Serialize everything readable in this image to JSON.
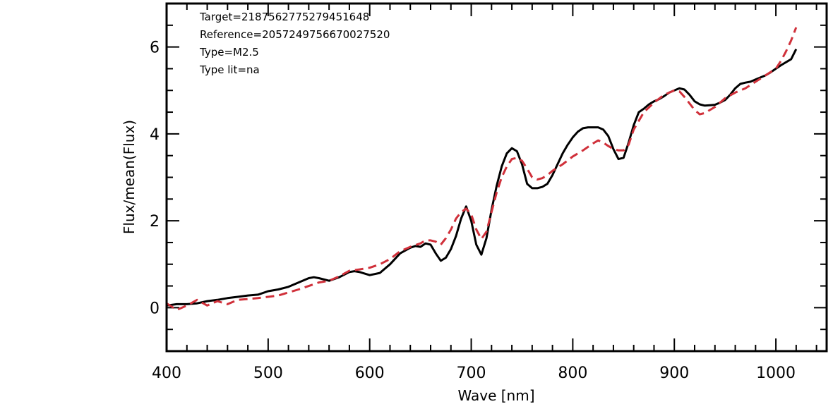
{
  "chart_data": {
    "type": "line",
    "xlabel": "Wave [nm]",
    "ylabel": "Flux/mean(Flux)",
    "xlim": [
      400,
      1050
    ],
    "ylim": [
      -1,
      7
    ],
    "x_ticks": [
      400,
      500,
      600,
      700,
      800,
      900,
      1000
    ],
    "y_ticks": [
      0,
      2,
      4,
      6
    ],
    "grid": false,
    "annotations": [
      "Target=2187562775279451648",
      "Reference=2057249756670027520",
      "Type=M2.5",
      "Type lit=na"
    ],
    "series": [
      {
        "style": "solid",
        "color": "#000000",
        "x": [
          400,
          410,
          420,
          430,
          440,
          450,
          460,
          470,
          480,
          490,
          500,
          510,
          520,
          530,
          540,
          545,
          550,
          560,
          570,
          580,
          585,
          590,
          600,
          610,
          620,
          630,
          640,
          645,
          650,
          655,
          660,
          665,
          670,
          675,
          680,
          685,
          690,
          695,
          700,
          705,
          710,
          715,
          720,
          725,
          730,
          735,
          740,
          745,
          750,
          755,
          760,
          765,
          770,
          775,
          780,
          785,
          790,
          795,
          800,
          805,
          810,
          815,
          820,
          825,
          830,
          835,
          840,
          845,
          850,
          855,
          860,
          865,
          870,
          875,
          880,
          885,
          890,
          895,
          900,
          905,
          910,
          915,
          920,
          925,
          930,
          935,
          940,
          945,
          950,
          955,
          960,
          965,
          970,
          975,
          980,
          985,
          990,
          995,
          1000,
          1005,
          1010,
          1015,
          1020
        ],
        "y": [
          0.05,
          0.08,
          0.08,
          0.1,
          0.15,
          0.18,
          0.22,
          0.25,
          0.28,
          0.3,
          0.38,
          0.42,
          0.48,
          0.58,
          0.68,
          0.7,
          0.68,
          0.62,
          0.7,
          0.82,
          0.84,
          0.82,
          0.75,
          0.8,
          1.0,
          1.25,
          1.38,
          1.42,
          1.4,
          1.48,
          1.45,
          1.25,
          1.08,
          1.15,
          1.35,
          1.65,
          2.05,
          2.33,
          2.0,
          1.45,
          1.22,
          1.6,
          2.25,
          2.8,
          3.25,
          3.55,
          3.67,
          3.6,
          3.3,
          2.85,
          2.75,
          2.75,
          2.78,
          2.85,
          3.05,
          3.3,
          3.55,
          3.75,
          3.92,
          4.05,
          4.13,
          4.15,
          4.15,
          4.15,
          4.1,
          3.95,
          3.65,
          3.42,
          3.45,
          3.8,
          4.2,
          4.5,
          4.58,
          4.68,
          4.75,
          4.8,
          4.87,
          4.95,
          5.0,
          5.05,
          5.02,
          4.9,
          4.75,
          4.68,
          4.65,
          4.66,
          4.67,
          4.72,
          4.78,
          4.9,
          5.05,
          5.15,
          5.18,
          5.2,
          5.25,
          5.3,
          5.35,
          5.42,
          5.5,
          5.58,
          5.65,
          5.72,
          5.95
        ]
      },
      {
        "style": "dashed",
        "color": "#d0303a",
        "x": [
          400,
          410,
          420,
          430,
          440,
          450,
          460,
          470,
          480,
          490,
          500,
          510,
          520,
          530,
          540,
          550,
          560,
          570,
          580,
          590,
          600,
          610,
          620,
          630,
          640,
          650,
          655,
          660,
          665,
          670,
          675,
          680,
          685,
          690,
          695,
          700,
          705,
          710,
          715,
          720,
          725,
          730,
          735,
          740,
          745,
          750,
          755,
          760,
          765,
          770,
          775,
          780,
          790,
          800,
          810,
          820,
          825,
          830,
          835,
          840,
          845,
          850,
          855,
          860,
          870,
          880,
          890,
          900,
          905,
          910,
          915,
          920,
          925,
          930,
          935,
          940,
          950,
          960,
          970,
          980,
          990,
          1000,
          1005,
          1010,
          1015,
          1020
        ],
        "y": [
          0.1,
          -0.05,
          0.05,
          0.18,
          0.05,
          0.15,
          0.08,
          0.18,
          0.2,
          0.22,
          0.25,
          0.28,
          0.35,
          0.42,
          0.5,
          0.58,
          0.62,
          0.72,
          0.85,
          0.88,
          0.92,
          1.0,
          1.12,
          1.3,
          1.4,
          1.48,
          1.55,
          1.55,
          1.52,
          1.45,
          1.6,
          1.8,
          2.05,
          2.2,
          2.28,
          2.15,
          1.8,
          1.58,
          1.75,
          2.2,
          2.65,
          3.0,
          3.25,
          3.42,
          3.45,
          3.38,
          3.2,
          3.0,
          2.95,
          2.98,
          3.05,
          3.15,
          3.3,
          3.48,
          3.62,
          3.78,
          3.85,
          3.8,
          3.72,
          3.65,
          3.62,
          3.62,
          3.75,
          4.1,
          4.5,
          4.72,
          4.9,
          5.0,
          4.98,
          4.85,
          4.7,
          4.55,
          4.45,
          4.48,
          4.55,
          4.62,
          4.82,
          4.95,
          5.05,
          5.2,
          5.35,
          5.5,
          5.68,
          5.9,
          6.15,
          6.45
        ]
      }
    ]
  }
}
